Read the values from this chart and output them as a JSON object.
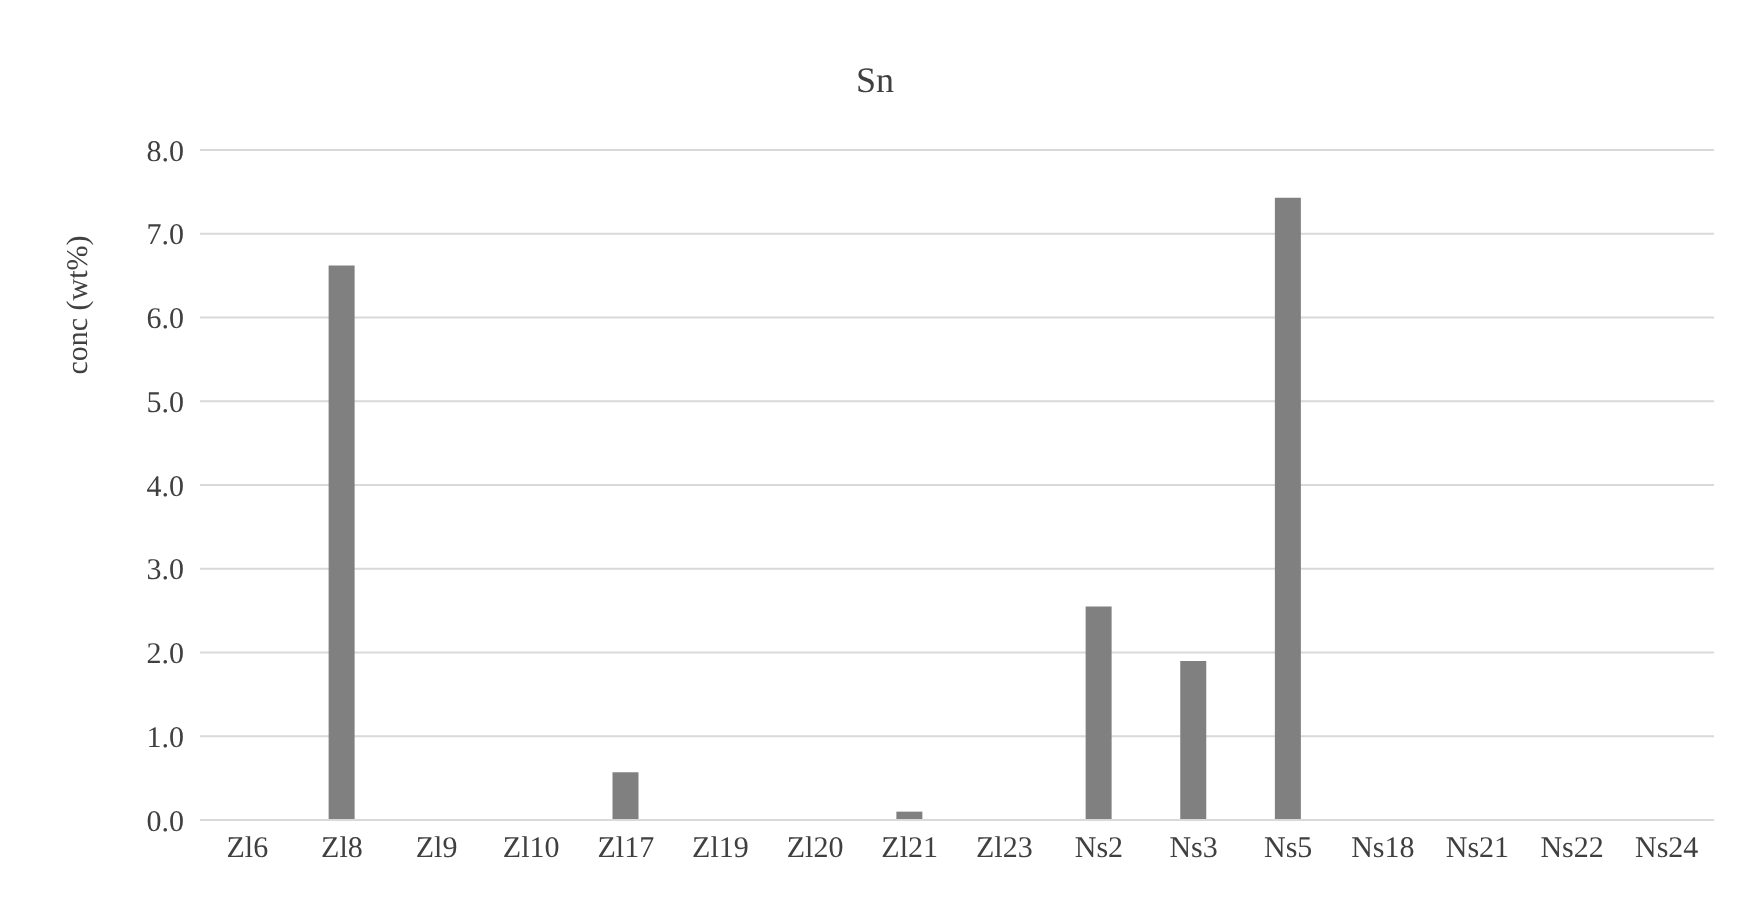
{
  "chart_data": {
    "type": "bar",
    "title": "Sn",
    "ylabel": "conc (wt%)",
    "categories": [
      "Zl6",
      "Zl8",
      "Zl9",
      "Zl10",
      "Zl17",
      "Zl19",
      "Zl20",
      "Zl21",
      "Zl23",
      "Ns2",
      "Ns3",
      "Ns5",
      "Ns18",
      "Ns21",
      "Ns22",
      "Ns24"
    ],
    "values": [
      0,
      6.62,
      0,
      0,
      0.57,
      0,
      0,
      0.1,
      0,
      2.55,
      1.9,
      7.43,
      0,
      0,
      0,
      0
    ],
    "color": "#808080",
    "ylim": [
      0,
      8
    ],
    "yticks": [
      {
        "value": 0,
        "label": "0.0"
      },
      {
        "value": 1,
        "label": "1.0"
      },
      {
        "value": 2,
        "label": "2.0"
      },
      {
        "value": 3,
        "label": "3.0"
      },
      {
        "value": 4,
        "label": "4.0"
      },
      {
        "value": 5,
        "label": "5.0"
      },
      {
        "value": 6,
        "label": "6.0"
      },
      {
        "value": 7,
        "label": "7.0"
      },
      {
        "value": 8,
        "label": "8.0"
      }
    ],
    "grid": "y"
  }
}
